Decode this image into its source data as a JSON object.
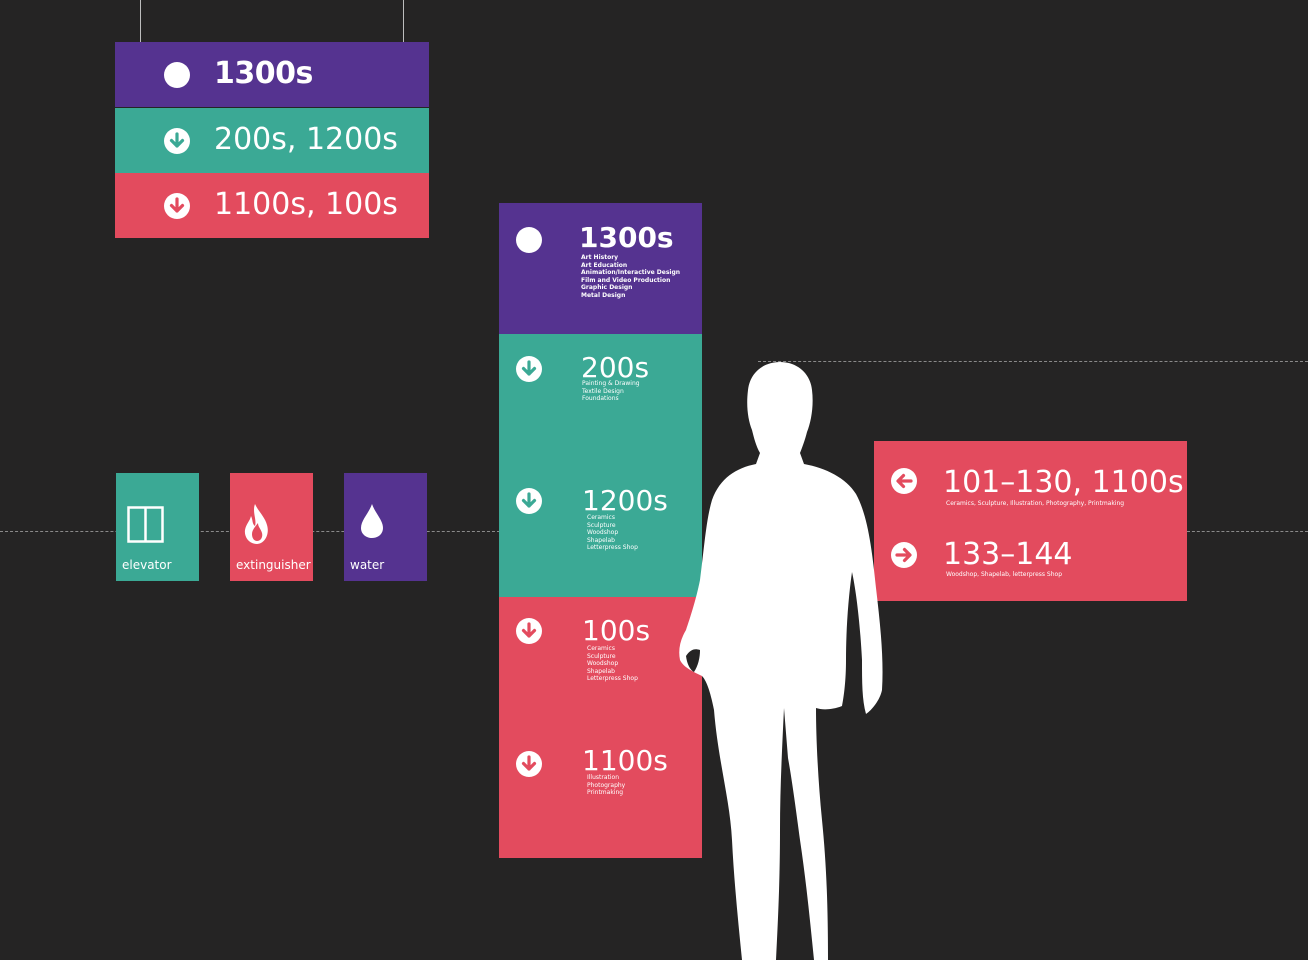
{
  "hanging_sign": {
    "rows": [
      {
        "label": "1300s",
        "icon": "dot-icon"
      },
      {
        "label": "200s, 1200s",
        "icon": "down-arrow-icon"
      },
      {
        "label": "1100s, 100s",
        "icon": "down-arrow-icon"
      }
    ]
  },
  "amenities": [
    {
      "label": "elevator",
      "icon": "elevator-icon"
    },
    {
      "label": "extinguisher",
      "icon": "flame-icon"
    },
    {
      "label": "water",
      "icon": "water-drop-icon"
    }
  ],
  "directory": {
    "sections": [
      {
        "number": "1300s",
        "icon": "dot-icon",
        "items": [
          "Art History",
          "Art Education",
          "Animation/Interactive Design",
          "Film and Video Production",
          "Graphic Design",
          "Metal Design"
        ]
      },
      {
        "number": "200s",
        "icon": "down-arrow-icon",
        "items": [
          "Painting & Drawing",
          "Textile Design",
          "Foundations"
        ]
      },
      {
        "number": "1200s",
        "icon": "down-arrow-icon",
        "items": [
          "Ceramics",
          "Sculpture",
          "Woodshop",
          "Shapelab",
          "Letterpress Shop"
        ]
      },
      {
        "number": "100s",
        "icon": "down-arrow-icon",
        "items": [
          "Ceramics",
          "Sculpture",
          "Woodshop",
          "Shapelab",
          "Letterpress Shop"
        ]
      },
      {
        "number": "1100s",
        "icon": "down-arrow-icon",
        "items": [
          "Illustration",
          "Photography",
          "Printmaking"
        ]
      }
    ]
  },
  "wall_sign": {
    "rows": [
      {
        "number": "101–130, 1100s",
        "icon": "left-arrow-icon",
        "desc": "Ceramics, Sculpture, Illustration, Photography, Printmaking"
      },
      {
        "number": "133–144",
        "icon": "right-arrow-icon",
        "desc": "Woodshop, Shapelab, letterpress Shop"
      }
    ]
  },
  "colors": {
    "background": "#252424",
    "purple": "#553390",
    "teal": "#3ba995",
    "red": "#e34b5e"
  }
}
